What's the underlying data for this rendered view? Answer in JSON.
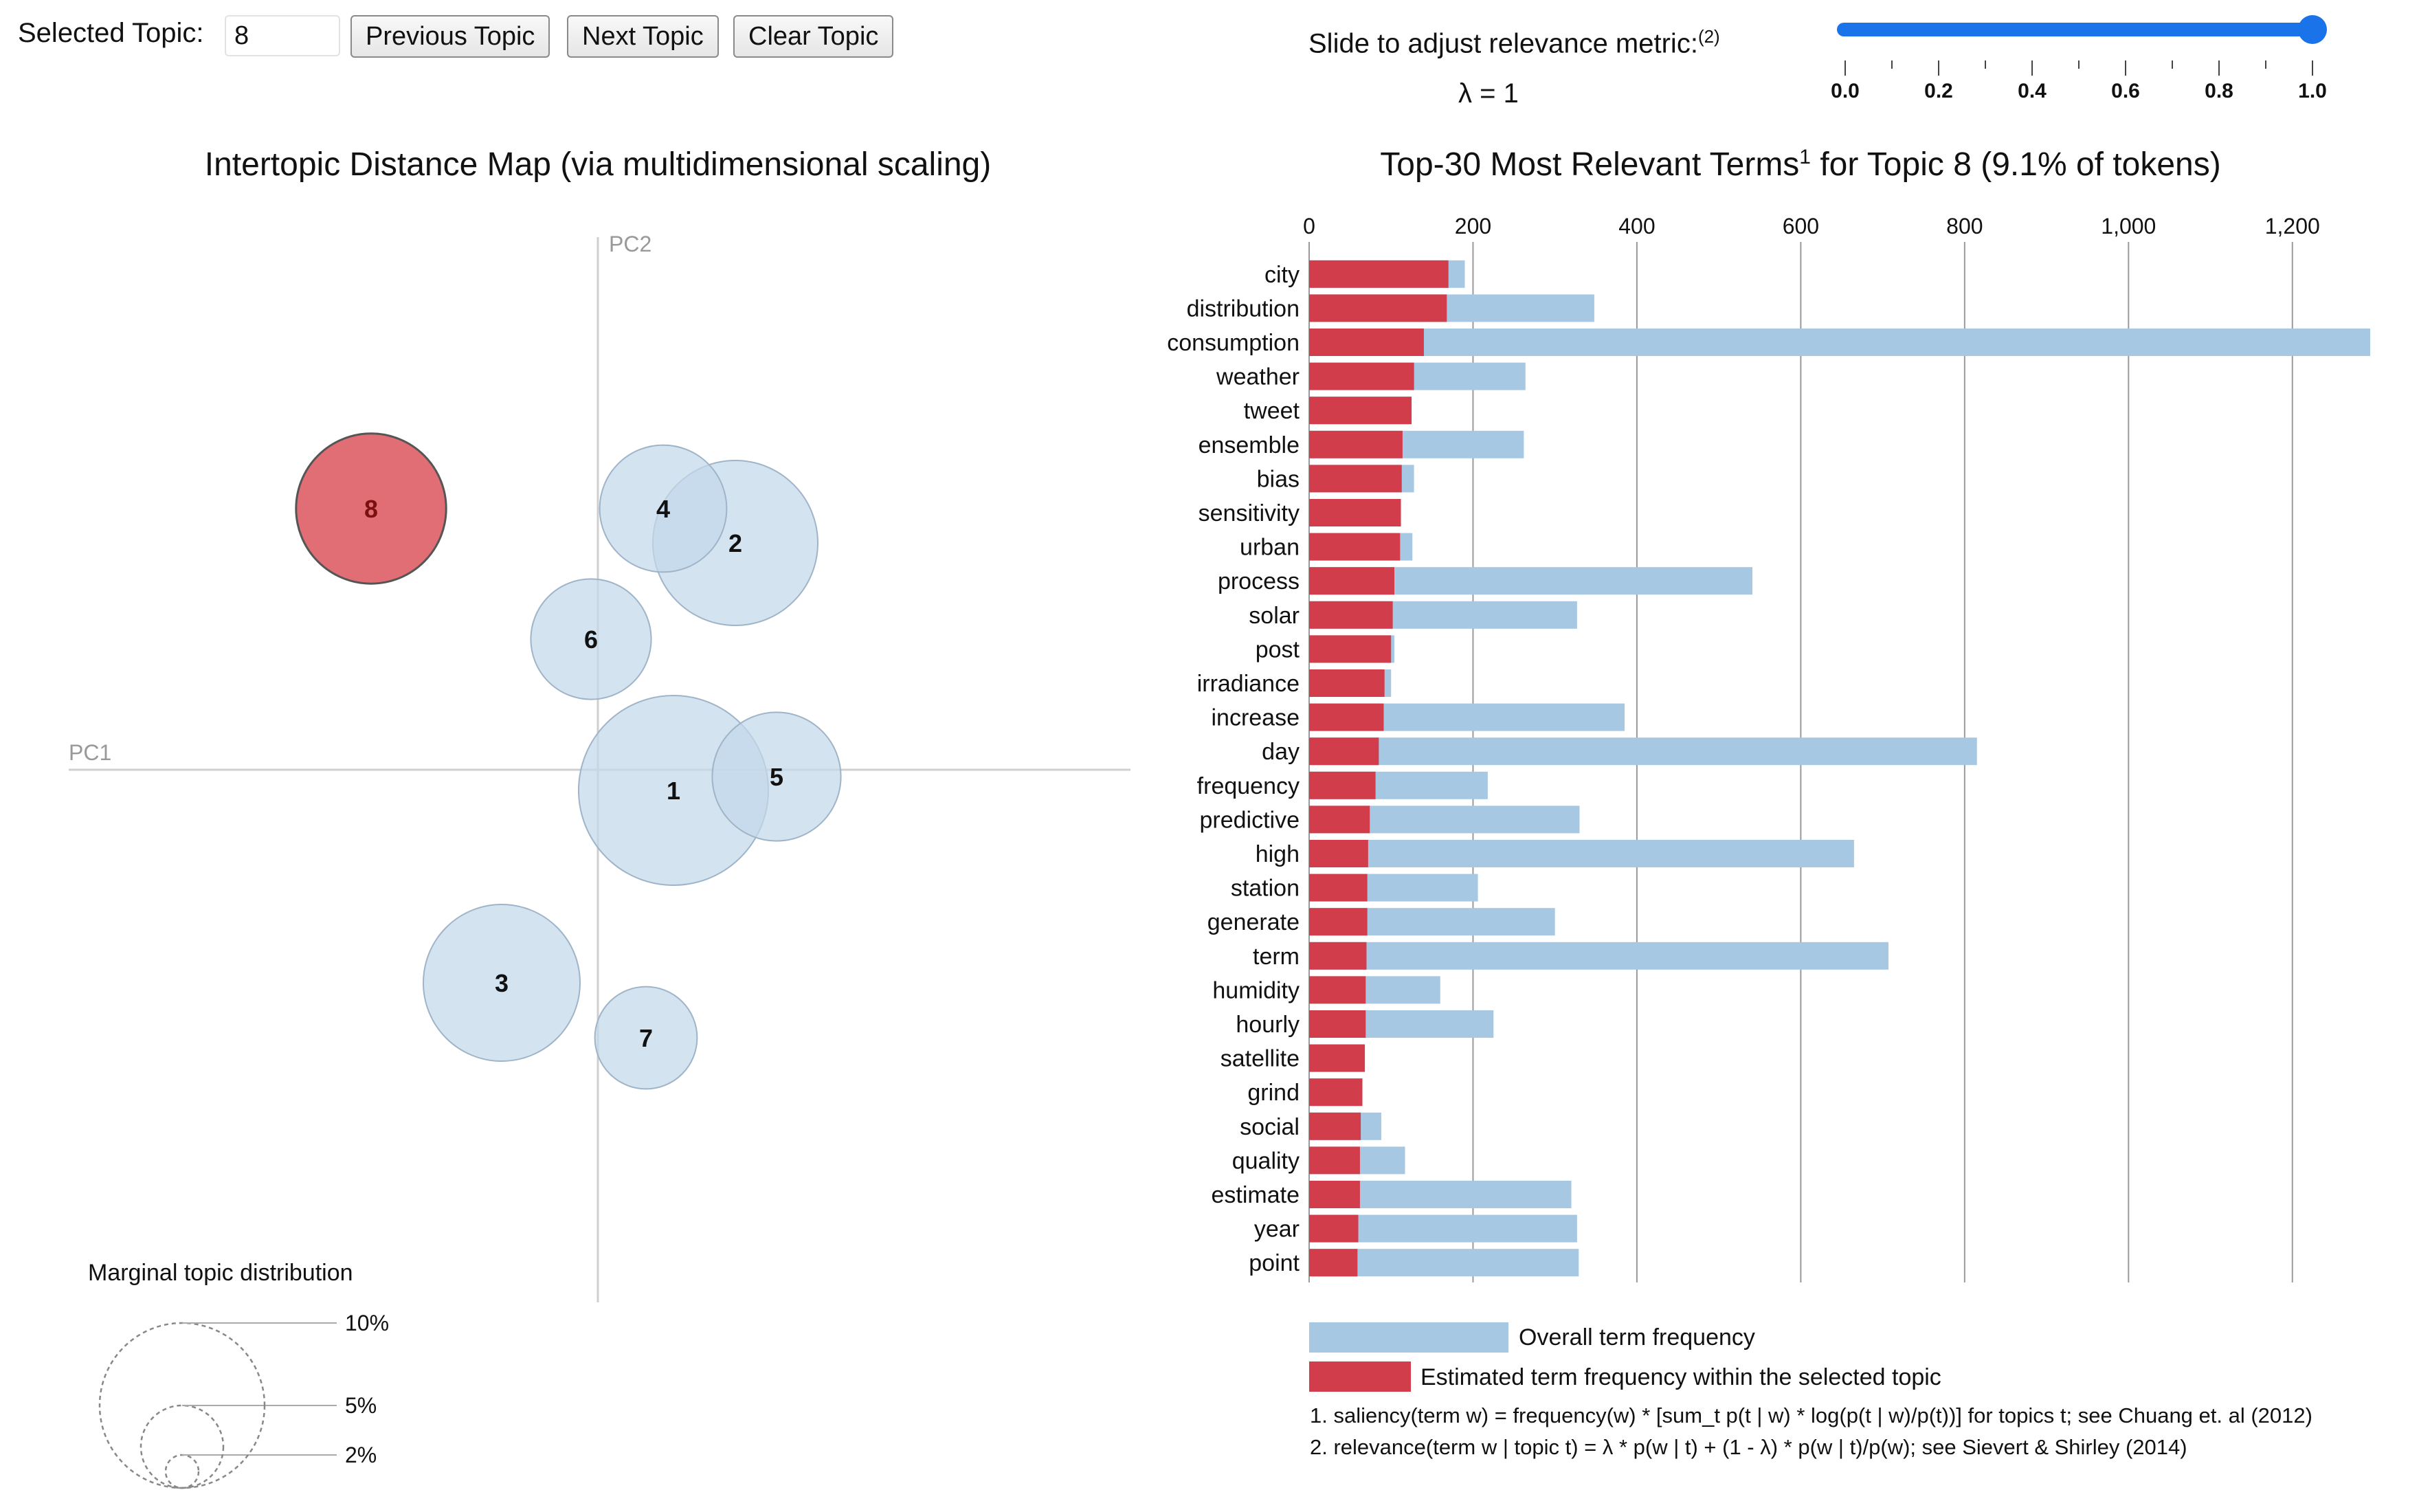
{
  "controls": {
    "selected_topic_label": "Selected Topic:",
    "selected_topic_value": "8",
    "prev_label": "Previous Topic",
    "next_label": "Next Topic",
    "clear_label": "Clear Topic",
    "slider_label": "Slide to adjust relevance metric:",
    "slider_footnote": "(2)",
    "lambda_text": "λ = 1",
    "slider_value": 1.0,
    "slider_ticks": [
      "0.0",
      "0.2",
      "0.4",
      "0.6",
      "0.8",
      "1.0"
    ]
  },
  "colors": {
    "topic_bubble": "#c3d8ea",
    "selected_bubble": "#e06e74",
    "overall_bar": "#a7c8e2",
    "topic_bar": "#d13d4b",
    "slider": "#1a73e8"
  },
  "chart_data": [
    {
      "type": "scatter",
      "title": "Intertopic Distance Map (via multidimensional scaling)",
      "xlabel": "PC1",
      "ylabel": "PC2",
      "selected_topic": 8,
      "topics": [
        {
          "id": "1",
          "pc1": 0.11,
          "pc2": -0.03,
          "size": 0.115
        },
        {
          "id": "2",
          "pc1": 0.2,
          "pc2": 0.33,
          "size": 0.1
        },
        {
          "id": "3",
          "pc1": -0.14,
          "pc2": -0.31,
          "size": 0.095
        },
        {
          "id": "4",
          "pc1": 0.095,
          "pc2": 0.38,
          "size": 0.077
        },
        {
          "id": "5",
          "pc1": 0.26,
          "pc2": -0.01,
          "size": 0.078
        },
        {
          "id": "6",
          "pc1": -0.01,
          "pc2": 0.19,
          "size": 0.073
        },
        {
          "id": "7",
          "pc1": 0.07,
          "pc2": -0.39,
          "size": 0.062
        },
        {
          "id": "8",
          "pc1": -0.33,
          "pc2": 0.38,
          "size": 0.091
        }
      ],
      "marginal": {
        "title": "Marginal topic distribution",
        "labels": [
          "2%",
          "5%",
          "10%"
        ],
        "values": [
          0.02,
          0.05,
          0.1
        ]
      }
    },
    {
      "type": "bar",
      "orientation": "horizontal",
      "title_pre": "Top-30 Most Relevant Terms",
      "title_sup": "1",
      "title_post": " for Topic 8 (9.1% of tokens)",
      "xlim": [
        0,
        1300
      ],
      "xticks": [
        0,
        200,
        400,
        600,
        800,
        1000,
        1200
      ],
      "xtick_labels": [
        "0",
        "200",
        "400",
        "600",
        "800",
        "1,000",
        "1,200"
      ],
      "terms": [
        "city",
        "distribution",
        "consumption",
        "weather",
        "tweet",
        "ensemble",
        "bias",
        "sensitivity",
        "urban",
        "process",
        "solar",
        "post",
        "irradiance",
        "increase",
        "day",
        "frequency",
        "predictive",
        "high",
        "station",
        "generate",
        "term",
        "humidity",
        "hourly",
        "satellite",
        "grind",
        "social",
        "quality",
        "estimate",
        "year",
        "point"
      ],
      "series": [
        {
          "name": "Overall term frequency",
          "values": [
            190,
            348,
            1295,
            264,
            125,
            262,
            128,
            112,
            126,
            541,
            327,
            104,
            100,
            385,
            815,
            218,
            330,
            665,
            206,
            300,
            707,
            160,
            225,
            68,
            65,
            88,
            117,
            320,
            327,
            329
          ]
        },
        {
          "name": "Estimated term frequency within the selected topic",
          "values": [
            170,
            168,
            140,
            128,
            125,
            114,
            113,
            112,
            111,
            104,
            102,
            100,
            92,
            91,
            85,
            81,
            74,
            72,
            71,
            71,
            70,
            69,
            69,
            68,
            65,
            63,
            62,
            62,
            60,
            59
          ]
        }
      ]
    }
  ],
  "notes": {
    "note1": "1. saliency(term w) = frequency(w) * [sum_t p(t | w) * log(p(t | w)/p(t))] for topics t; see Chuang et. al (2012)",
    "note2": "2. relevance(term w | topic t) = λ * p(w | t) + (1 - λ) * p(w | t)/p(w); see Sievert & Shirley (2014)"
  }
}
